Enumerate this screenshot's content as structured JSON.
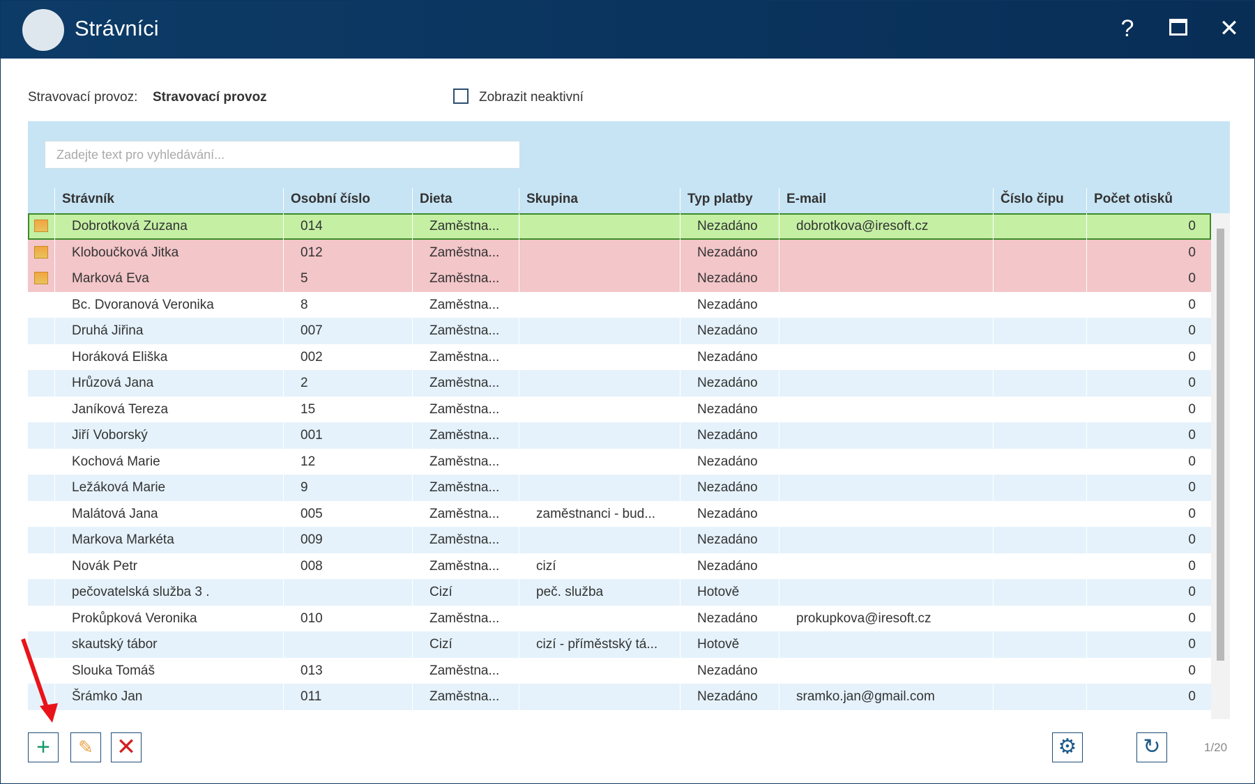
{
  "header": {
    "title": "Strávníci"
  },
  "filter": {
    "label": "Stravovací provoz:",
    "value": "Stravovací provoz",
    "checkbox": "Zobrazit neaktivní"
  },
  "search_placeholder": "Zadejte text pro vyhledávání...",
  "table": {
    "columns": [
      "Strávník",
      "Osobní číslo",
      "Dieta",
      "Skupina",
      "Typ platby",
      "E-mail",
      "Číslo čipu",
      "Počet otisků"
    ],
    "rows": [
      {
        "color": "#c5f0a4",
        "cells": [
          "Dobrotková Zuzana",
          "014",
          "Zaměstna...",
          null,
          "Nezadáno",
          "dobrotkova@iresoft.cz",
          null,
          0
        ]
      },
      {
        "color": "#f3c6c9",
        "cells": [
          "Kloboučková Jitka",
          "012",
          "Zaměstna...",
          null,
          "Nezadáno",
          null,
          null,
          0
        ]
      },
      {
        "color": "#f3c6c9",
        "cells": [
          "Marková Eva",
          "5",
          "Zaměstna...",
          null,
          "Nezadáno",
          null,
          null,
          0
        ]
      },
      {
        "cells": [
          "Bc. Dvoranová Veronika",
          "8",
          "Zaměstna...",
          null,
          "Nezadáno",
          null,
          null,
          0
        ]
      },
      {
        "cells": [
          "Druhá Jiřina",
          "007",
          "Zaměstna...",
          null,
          "Nezadáno",
          null,
          null,
          0
        ]
      },
      {
        "cells": [
          "Horáková Eliška",
          "002",
          "Zaměstna...",
          null,
          "Nezadáno",
          null,
          null,
          0
        ]
      },
      {
        "cells": [
          "Hrůzová Jana",
          "2",
          "Zaměstna...",
          null,
          "Nezadáno",
          null,
          null,
          0
        ]
      },
      {
        "cells": [
          "Janíková Tereza",
          "15",
          "Zaměstna...",
          null,
          "Nezadáno",
          null,
          null,
          0
        ]
      },
      {
        "cells": [
          "Jiří Voborský",
          "001",
          "Zaměstna...",
          null,
          "Nezadáno",
          null,
          null,
          0
        ]
      },
      {
        "cells": [
          "Kochová Marie",
          "12",
          "Zaměstna...",
          null,
          "Nezadáno",
          null,
          null,
          0
        ]
      },
      {
        "cells": [
          "Ležáková Marie",
          "9",
          "Zaměstna...",
          null,
          "Nezadáno",
          null,
          null,
          0
        ]
      },
      {
        "cells": [
          "Malátová Jana",
          "005",
          "Zaměstna...",
          "zaměstnanci - bud...",
          "Nezadáno",
          null,
          null,
          0
        ]
      },
      {
        "cells": [
          "Markova Markéta",
          "009",
          "Zaměstna...",
          null,
          "Nezadáno",
          null,
          null,
          0
        ]
      },
      {
        "cells": [
          "Novák Petr",
          "008",
          "Zaměstna...",
          "cizí",
          "Nezadáno",
          null,
          null,
          0
        ]
      },
      {
        "cells": [
          "pečovatelská služba 3 .",
          null,
          "Cizí",
          "peč. služba",
          "Hotově",
          null,
          null,
          0
        ]
      },
      {
        "cells": [
          "Prokůpková Veronika",
          "010",
          "Zaměstna...",
          null,
          "Nezadáno",
          "prokupkova@iresoft.cz",
          null,
          0
        ]
      },
      {
        "cells": [
          "skautský tábor",
          null,
          "Cizí",
          "cizí - příměstský tá...",
          "Hotově",
          null,
          null,
          0
        ]
      },
      {
        "cells": [
          "Slouka Tomáš",
          "013",
          "Zaměstna...",
          null,
          "Nezadáno",
          null,
          null,
          0
        ]
      },
      {
        "cells": [
          "Šrámko Jan",
          "011",
          "Zaměstna...",
          null,
          "Nezadáno",
          "sramko.jan@gmail.com",
          null,
          0
        ]
      }
    ]
  },
  "pager": "1/20"
}
